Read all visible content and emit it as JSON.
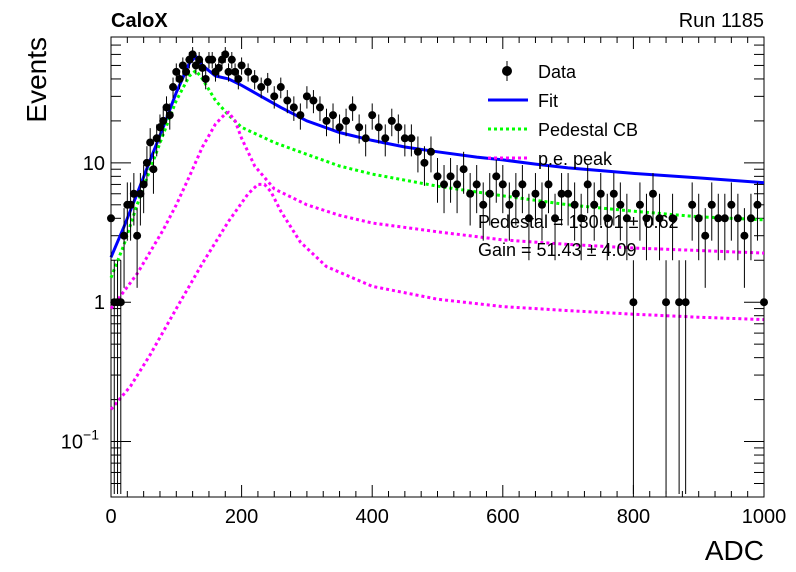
{
  "header": {
    "experiment": "CaloX",
    "run": "Run 1185"
  },
  "chart_data": {
    "type": "scatter",
    "xlabel": "ADC",
    "ylabel": "Events",
    "xlim": [
      0,
      1000
    ],
    "ylim": [
      0.04,
      80
    ],
    "yscale": "log",
    "grid": false,
    "legend_position": "top-right",
    "x_ticks": [
      "0",
      "200",
      "400",
      "600",
      "800",
      "1000"
    ],
    "y_ticks": [
      {
        "value": 0.1,
        "base": "10",
        "exp": "−1"
      },
      {
        "value": 1,
        "label": "1"
      },
      {
        "value": 10,
        "label": "10"
      }
    ],
    "legend": [
      {
        "label": "Data",
        "key": "data",
        "color": "#000000"
      },
      {
        "label": "Fit",
        "key": "fit",
        "color": "#0000ff"
      },
      {
        "label": "Pedestal CB",
        "key": "pedestal",
        "color": "#00ff00"
      },
      {
        "label": "p.e. peak",
        "key": "pe",
        "color": "#ff00ff"
      }
    ],
    "annotations": [
      "Pedestal = 130.01 ± 0.62",
      "Gain = 51.43 ± 4.09"
    ],
    "series": [
      {
        "name": "Data",
        "key": "data",
        "x": [
          0,
          5,
          10,
          15,
          20,
          25,
          30,
          35,
          40,
          45,
          50,
          55,
          60,
          65,
          70,
          75,
          80,
          85,
          90,
          95,
          100,
          105,
          110,
          115,
          120,
          125,
          130,
          135,
          140,
          145,
          150,
          155,
          160,
          165,
          170,
          175,
          180,
          185,
          190,
          195,
          200,
          210,
          220,
          230,
          240,
          250,
          260,
          270,
          280,
          290,
          300,
          310,
          320,
          330,
          340,
          350,
          360,
          370,
          380,
          390,
          400,
          410,
          420,
          430,
          440,
          450,
          460,
          470,
          480,
          490,
          500,
          510,
          520,
          530,
          540,
          550,
          560,
          570,
          580,
          590,
          600,
          610,
          620,
          630,
          640,
          650,
          660,
          670,
          680,
          690,
          700,
          710,
          720,
          730,
          740,
          750,
          760,
          770,
          780,
          790,
          800,
          810,
          820,
          830,
          840,
          850,
          860,
          870,
          880,
          890,
          900,
          910,
          920,
          930,
          940,
          950,
          960,
          970,
          980,
          990,
          1000
        ],
        "y": [
          4,
          1,
          1,
          1,
          3,
          5,
          5,
          6,
          3,
          6,
          7,
          10,
          14,
          9,
          15,
          18,
          20,
          25,
          22,
          35,
          45,
          40,
          50,
          45,
          55,
          60,
          50,
          55,
          48,
          40,
          55,
          55,
          45,
          48,
          55,
          60,
          45,
          55,
          45,
          40,
          50,
          45,
          40,
          35,
          38,
          30,
          35,
          28,
          25,
          22,
          30,
          28,
          25,
          20,
          22,
          18,
          20,
          25,
          18,
          15,
          22,
          18,
          15,
          20,
          18,
          15,
          15,
          12,
          10,
          12,
          8,
          7,
          8,
          7,
          9,
          6,
          7,
          5,
          6,
          8,
          7,
          5,
          6,
          7,
          4,
          6,
          5,
          7,
          4,
          6,
          6,
          5,
          4,
          7,
          5,
          6,
          4,
          6,
          5,
          4,
          1,
          5,
          4,
          6,
          4,
          1,
          4,
          1,
          1,
          5,
          4,
          3,
          5,
          4,
          4,
          5,
          4,
          3,
          4,
          5,
          1
        ]
      },
      {
        "name": "Fit",
        "key": "fit",
        "x": [
          0,
          20,
          40,
          60,
          80,
          100,
          120,
          130,
          140,
          160,
          180,
          200,
          230,
          260,
          300,
          350,
          400,
          450,
          500,
          560,
          600,
          650,
          700,
          800,
          900,
          1000
        ],
        "y": [
          2.1,
          3.5,
          6.0,
          10.5,
          18,
          32,
          52,
          58,
          50,
          42,
          40,
          36,
          30,
          25,
          20,
          16.5,
          14.5,
          13,
          12,
          11,
          10.5,
          9.8,
          9.2,
          8.4,
          7.8,
          7.2
        ]
      },
      {
        "name": "Pedestal CB",
        "key": "pedestal",
        "x": [
          0,
          20,
          40,
          60,
          80,
          100,
          120,
          130,
          140,
          160,
          180,
          200,
          250,
          300,
          350,
          400,
          500,
          600,
          700,
          800,
          900,
          1000
        ],
        "y": [
          1.5,
          2.6,
          5.0,
          9.0,
          16,
          28,
          42,
          46,
          40,
          28,
          22,
          18,
          14,
          11.5,
          9.5,
          8.3,
          6.8,
          5.8,
          5.0,
          4.5,
          4.1,
          3.9
        ]
      },
      {
        "name": "p.e. peak",
        "key": "pe",
        "x": [
          0,
          20,
          40,
          60,
          80,
          100,
          120,
          140,
          160,
          175,
          180,
          190,
          200,
          220,
          250,
          300,
          350,
          400,
          500,
          600,
          700,
          800,
          900,
          1000
        ],
        "y": [
          0.9,
          1.2,
          1.6,
          2.3,
          3.3,
          5.0,
          8.0,
          13,
          19,
          22.5,
          23,
          20,
          15,
          9.5,
          6.5,
          5.0,
          4.2,
          3.7,
          3.2,
          2.8,
          2.6,
          2.45,
          2.35,
          2.25
        ]
      },
      {
        "name": "p.e. peak",
        "key": "pe2",
        "x": [
          0,
          30,
          60,
          100,
          140,
          180,
          210,
          225,
          235,
          245,
          260,
          290,
          330,
          400,
          500,
          600,
          700,
          800,
          900,
          1000
        ],
        "y": [
          0.17,
          0.25,
          0.42,
          0.9,
          1.9,
          3.8,
          6.0,
          7.0,
          7.0,
          6.2,
          4.5,
          2.7,
          1.8,
          1.3,
          1.05,
          0.93,
          0.87,
          0.82,
          0.78,
          0.75
        ]
      }
    ]
  }
}
